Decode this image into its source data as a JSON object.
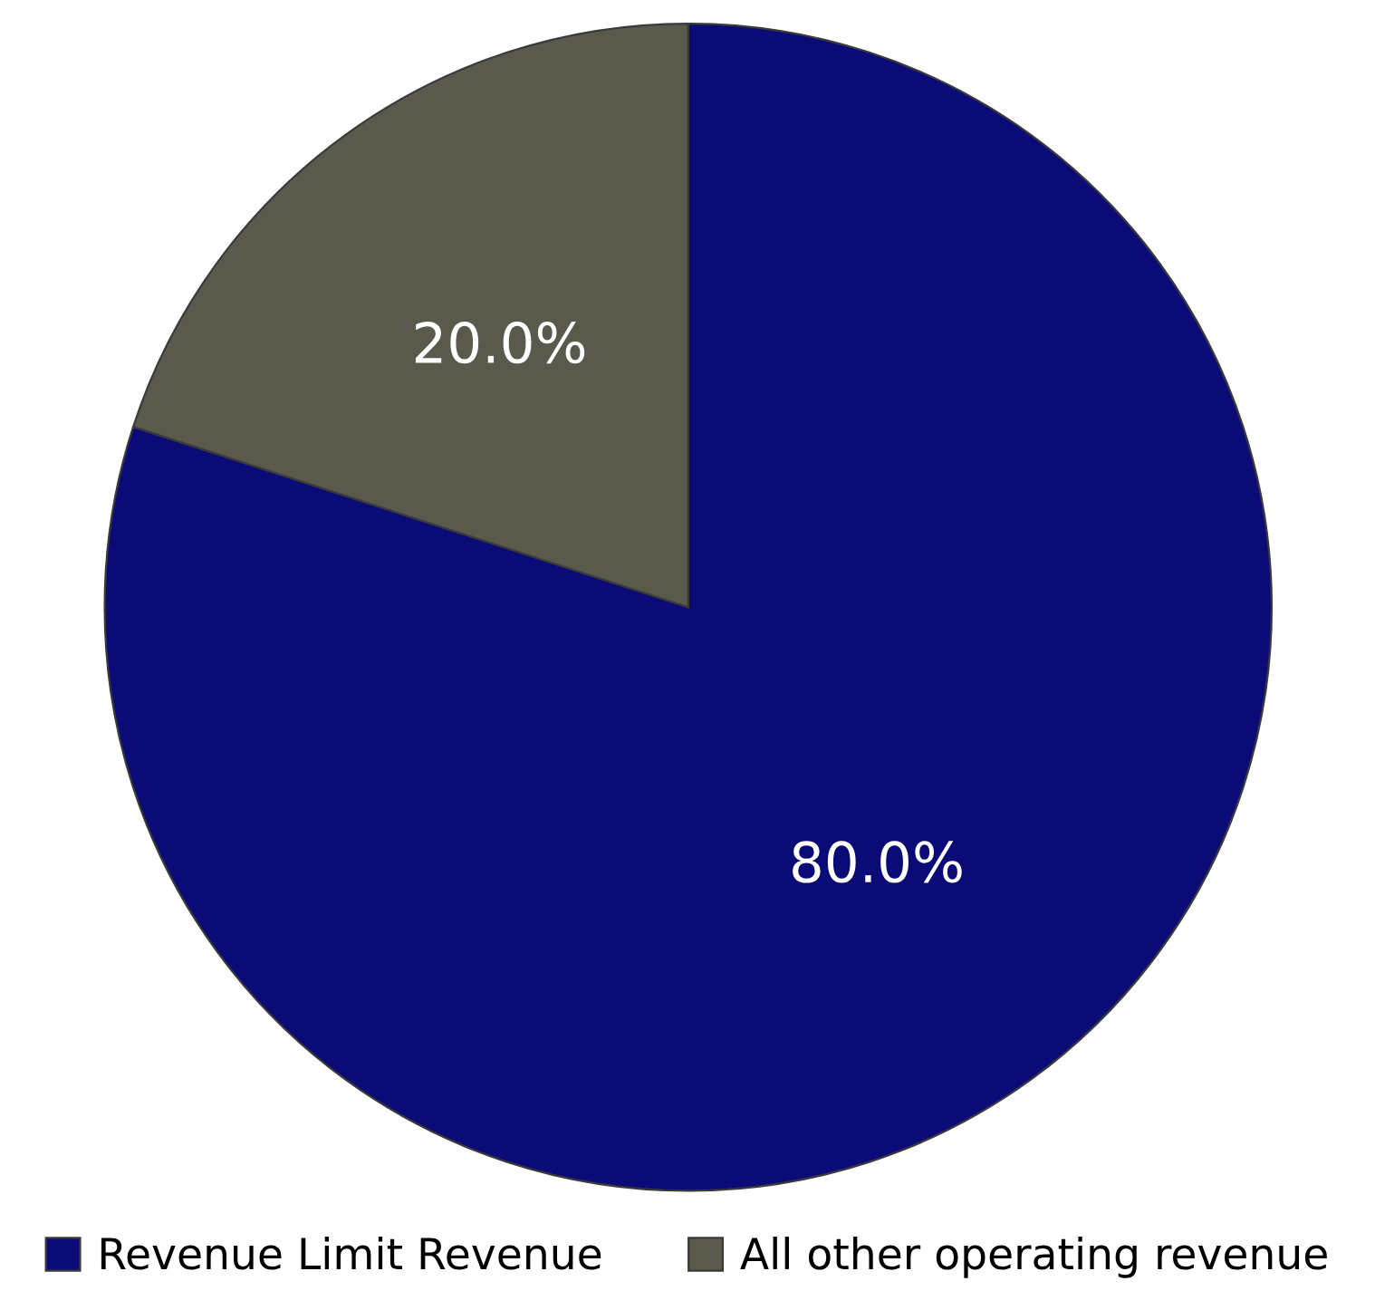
{
  "chart_data": {
    "type": "pie",
    "categories": [
      "Revenue Limit Revenue",
      "All other operating revenue"
    ],
    "values": [
      80,
      20
    ],
    "value_labels": [
      "80.0%",
      "20.0%"
    ],
    "colors": [
      "#0b0b78",
      "#5a5a4c"
    ],
    "legend": "bottom"
  }
}
